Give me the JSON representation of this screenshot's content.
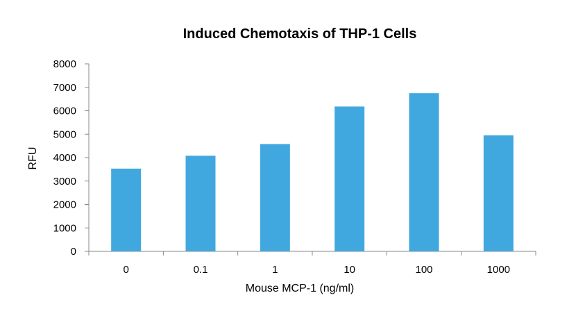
{
  "chart_data": {
    "type": "bar",
    "title": "Induced Chemotaxis of THP-1 Cells",
    "xlabel": "Mouse MCP-1 (ng/ml)",
    "ylabel": "RFU",
    "categories": [
      "0",
      "0.1",
      "1",
      "10",
      "100",
      "1000"
    ],
    "values": [
      3530,
      4080,
      4580,
      6180,
      6750,
      4950
    ],
    "ylim": [
      0,
      8000
    ],
    "yticks": [
      0,
      1000,
      2000,
      3000,
      4000,
      5000,
      6000,
      7000,
      8000
    ],
    "bar_color": "#41a8df",
    "axis_color": "#888888",
    "grid": false,
    "legend": "none"
  }
}
